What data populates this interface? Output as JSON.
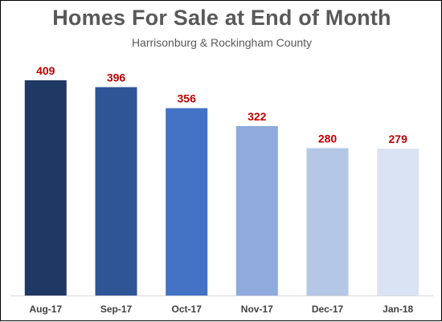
{
  "chart_data": {
    "type": "bar",
    "title": "Homes For Sale at End of Month",
    "subtitle": "Harrisonburg & Rockingham County",
    "categories": [
      "Aug-17",
      "Sep-17",
      "Oct-17",
      "Nov-17",
      "Dec-17",
      "Jan-18"
    ],
    "values": [
      409,
      396,
      356,
      322,
      280,
      279
    ],
    "colors": [
      "#1f3864",
      "#2f5597",
      "#4472c4",
      "#8faadc",
      "#b4c7e7",
      "#dae3f3"
    ],
    "label_color": "#c00000",
    "ylim": [
      0,
      450
    ],
    "grid": false,
    "legend": "none",
    "xlabel": "",
    "ylabel": ""
  }
}
